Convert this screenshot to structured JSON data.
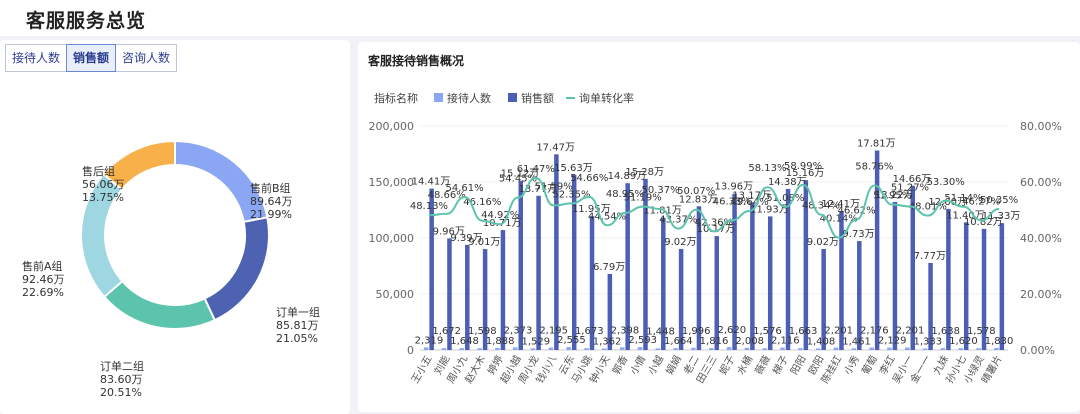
{
  "header": {
    "title": "客服服务总览"
  },
  "tabs": [
    {
      "label": "接待人数",
      "active": false
    },
    {
      "label": "销售额",
      "active": true
    },
    {
      "label": "咨询人数",
      "active": false
    }
  ],
  "donut": {
    "center": [
      140,
      195
    ],
    "radii": [
      0,
      0
    ],
    "slices": [
      {
        "name": "售前B组",
        "value": "89.64万",
        "pct": "21.99%",
        "amount": 89.64,
        "color": "#8ba7f3"
      },
      {
        "name": "订单一组",
        "value": "85.81万",
        "pct": "21.05%",
        "amount": 85.81,
        "color": "#4d62b1"
      },
      {
        "name": "订单二组",
        "value": "83.60万",
        "pct": "20.51%",
        "amount": 83.6,
        "color": "#5cc3ad"
      },
      {
        "name": "售前A组",
        "value": "92.46万",
        "pct": "22.69%",
        "amount": 92.46,
        "color": "#9ed6e1"
      },
      {
        "name": "售后组",
        "value": "56.06万",
        "pct": "13.75%",
        "amount": 56.06,
        "color": "#f8b04a"
      }
    ]
  },
  "right_panel": {
    "title": "客服接待销售概况"
  },
  "chart_data": {
    "type": "bar",
    "legend_title": "指标名称",
    "legend": [
      {
        "name": "接待人数",
        "color": "#8ba7f3",
        "kind": "bar"
      },
      {
        "name": "销售额",
        "color": "#4d5fb4",
        "kind": "bar"
      },
      {
        "name": "询单转化率",
        "color": "#5cc3ad",
        "kind": "line"
      }
    ],
    "yleft": {
      "ticks": [
        "200,000",
        "150,000",
        "100,000",
        "50,000",
        "0"
      ],
      "ylim": [
        0,
        200000
      ]
    },
    "yright": {
      "ticks": [
        "80.00%",
        "60.00%",
        "40.00%",
        "20.00%",
        "0.00%"
      ],
      "ylim": [
        0,
        80
      ]
    },
    "categories": [
      "王小五",
      "刘能",
      "周小九",
      "赵大木",
      "婷婷",
      "超小越",
      "周小龙",
      "钱小八",
      "云东",
      "马小跳",
      "钟小天",
      "郭香",
      "小倩",
      "小越",
      "娟娟",
      "老二",
      "田三三",
      "妮子",
      "水桶",
      "薇薇",
      "梯子",
      "阳阳",
      "欧阳",
      "陈桂红",
      "小秀",
      "葡萄",
      "李红",
      "吴小一",
      "金一一",
      "九妹",
      "孙小七",
      "小绿灵",
      "晴薯片"
    ],
    "visitors": [
      2319,
      1672,
      1648,
      1598,
      1888,
      2373,
      1529,
      2195,
      2555,
      1673,
      1362,
      2398,
      2593,
      1448,
      1664,
      1996,
      1816,
      2620,
      2008,
      1576,
      2116,
      1663,
      1408,
      2201,
      1461,
      2176,
      2129,
      2201,
      1333,
      1638,
      1620,
      1578,
      1830
    ],
    "visitor_labels": [
      "2,319",
      "1,672",
      "1,648",
      "1,598",
      "1,888",
      "2,373",
      "1,529",
      "2,195",
      "2,555",
      "1,673",
      "1,362",
      "2,398",
      "2,593",
      "1,448",
      "1,664",
      "1,996",
      "1,816",
      "2,620",
      "2,008",
      "1,576",
      "2,116",
      "1,663",
      "1,408",
      "2,201",
      "1,461",
      "2,176",
      "2,129",
      "2,201",
      "1,333",
      "1,638",
      "1,620",
      "1,578",
      "1,830"
    ],
    "sales": [
      144100,
      99600,
      93900,
      90100,
      107100,
      151200,
      137700,
      174700,
      156300,
      119500,
      67900,
      148900,
      152800,
      118100,
      90200,
      128300,
      101700,
      139600,
      131700,
      119300,
      143800,
      151600,
      90200,
      124100,
      97300,
      178100,
      132200,
      146600,
      77700,
      126000,
      114000,
      108200,
      113300
    ],
    "sales_labels": [
      "14.41万",
      "9.96万",
      "9.39万",
      "9.01万",
      "10.71万",
      "15.12万",
      "13.77万",
      "17.47万",
      "15.63万",
      "11.95万",
      "6.79万",
      "14.89万",
      "15.28万",
      "11.81万",
      "9.02万",
      "12.83万",
      "10.17万",
      "13.96万",
      "13.17万",
      "11.93万",
      "14.38万",
      "15.16万",
      "9.02万",
      "12.41万",
      "9.73万",
      "17.81万",
      "13.22万",
      "14.66万",
      "7.77万",
      "12.60万",
      "11.40万",
      "10.82万",
      "11.33万"
    ],
    "conversion": [
      48.13,
      48.66,
      54.61,
      46.16,
      44.92,
      54.45,
      61.47,
      51.59,
      52.35,
      54.66,
      44.54,
      48.95,
      51.19,
      50.37,
      43.37,
      50.07,
      42.36,
      46.33,
      49.64,
      58.13,
      51.08,
      58.99,
      48.34,
      40.14,
      46.62,
      58.76,
      51.95,
      51.27,
      48.01,
      53.3,
      51.14,
      46.27,
      50.35
    ],
    "conversion_labels": [
      "48.13%",
      "48.66%",
      "54.61%",
      "46.16%",
      "44.92%",
      "54.45%",
      "61.47%",
      "51.59%",
      "52.35%",
      "54.66%",
      "44.54%",
      "48.95%",
      "51.19%",
      "50.37%",
      "43.37%",
      "50.07%",
      "42.36%",
      "46.33%",
      "49.64%",
      "58.13%",
      "51.08%",
      "58.99%",
      "48.34%",
      "40.14%",
      "46.62%",
      "58.76%",
      "51.95%",
      "51.27%",
      "48.01%",
      "53.30%",
      "51.14%",
      "46.27%",
      "50.35%"
    ]
  }
}
